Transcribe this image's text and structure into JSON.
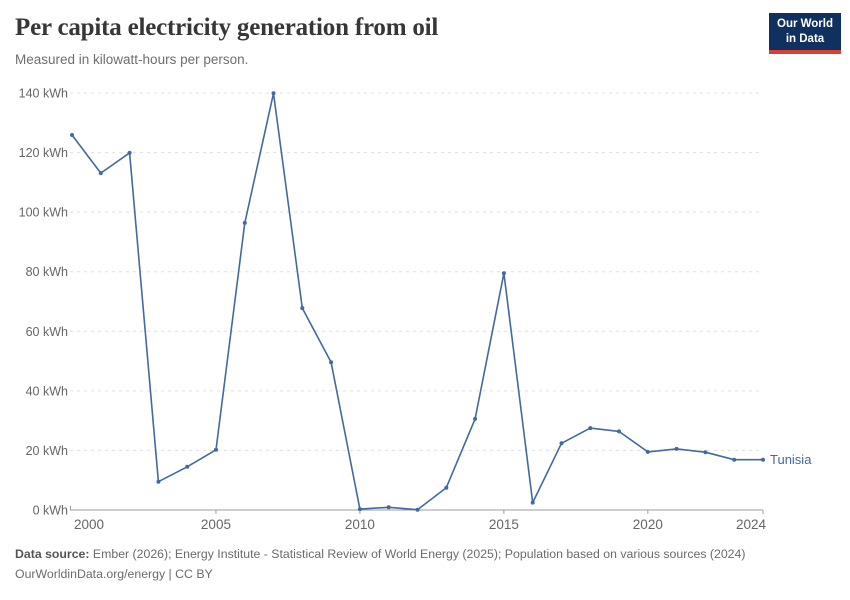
{
  "header": {
    "title": "Per capita electricity generation from oil",
    "subtitle": "Measured in kilowatt-hours per person.",
    "logo": {
      "line1": "Our World",
      "line2": "in Data"
    }
  },
  "chart_data": {
    "type": "line",
    "title": "Per capita electricity generation from oil",
    "ylabel": "",
    "xlabel": "",
    "unit": "kWh",
    "x": [
      2000,
      2001,
      2002,
      2003,
      2004,
      2005,
      2006,
      2007,
      2008,
      2009,
      2010,
      2011,
      2012,
      2013,
      2014,
      2015,
      2016,
      2017,
      2018,
      2019,
      2020,
      2021,
      2022,
      2023,
      2024
    ],
    "series": [
      {
        "name": "Tunisia",
        "color": "#4269a2",
        "values": [
          125.9,
          113.1,
          119.9,
          9.5,
          14.5,
          20.2,
          96.4,
          139.9,
          67.8,
          49.6,
          0.3,
          0.9,
          0.1,
          7.5,
          30.6,
          79.5,
          2.5,
          22.4,
          27.5,
          26.4,
          19.5,
          20.5,
          19.4,
          16.9,
          16.9
        ]
      }
    ],
    "xlim": [
      2000,
      2024
    ],
    "ylim": [
      0,
      140
    ],
    "yticks": [
      0,
      20,
      40,
      60,
      80,
      100,
      120,
      140
    ],
    "ytick_suffix": " kWh",
    "xticks": [
      2000,
      2005,
      2010,
      2015,
      2020,
      2024
    ],
    "grid": "horizontal-dashed",
    "legend_position": "end-of-line-label"
  },
  "footer": {
    "source_label": "Data source:",
    "source_text": " Ember (2026); Energy Institute - Statistical Review of World Energy (2025); Population based on various sources (2024)",
    "license_line": "OurWorldinData.org/energy | CC BY"
  },
  "colors": {
    "series": "#4269a2",
    "logo_bg": "#10315f",
    "logo_accent": "#dc3e32",
    "grid": "#e0e0e0",
    "axis": "#9c9c9c",
    "tick_text": "#666666",
    "title_text": "#373737",
    "subtitle_text": "#6e6e6e",
    "footer_text": "#6b6b6b"
  }
}
